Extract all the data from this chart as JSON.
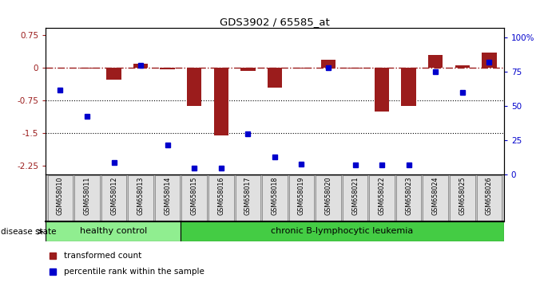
{
  "title": "GDS3902 / 65585_at",
  "samples": [
    "GSM658010",
    "GSM658011",
    "GSM658012",
    "GSM658013",
    "GSM658014",
    "GSM658015",
    "GSM658016",
    "GSM658017",
    "GSM658018",
    "GSM658019",
    "GSM658020",
    "GSM658021",
    "GSM658022",
    "GSM658023",
    "GSM658024",
    "GSM658025",
    "GSM658026"
  ],
  "bar_values": [
    0.0,
    -0.02,
    -0.28,
    0.08,
    -0.04,
    -0.87,
    -1.55,
    -0.08,
    -0.45,
    -0.02,
    0.18,
    -0.02,
    -1.0,
    -0.87,
    0.28,
    0.05,
    0.35
  ],
  "pct_values": [
    62,
    43,
    9,
    80,
    22,
    5,
    5,
    30,
    13,
    8,
    78,
    7,
    7,
    7,
    75,
    60,
    82
  ],
  "ylim_left": [
    -2.45,
    0.9
  ],
  "ylim_right": [
    0,
    107
  ],
  "yticks_left": [
    0.75,
    0.0,
    -0.75,
    -1.5,
    -2.25
  ],
  "yticks_right": [
    100,
    75,
    50,
    25,
    0
  ],
  "ytick_labels_left": [
    "0.75",
    "0",
    "-0.75",
    "-1.5",
    "-2.25"
  ],
  "ytick_labels_right": [
    "100%",
    "75",
    "50",
    "25",
    "0"
  ],
  "dotted_lines": [
    -0.75,
    -1.5
  ],
  "bar_color": "#9B1C1C",
  "pct_color": "#0000CC",
  "healthy_end": 5,
  "healthy_label": "healthy control",
  "disease_label": "chronic B-lymphocytic leukemia",
  "disease_state_label": "disease state",
  "legend_bar": "transformed count",
  "legend_pct": "percentile rank within the sample",
  "healthy_color": "#90EE90",
  "disease_color": "#44CC44",
  "bar_width": 0.55,
  "xlim": [
    -0.55,
    16.55
  ]
}
